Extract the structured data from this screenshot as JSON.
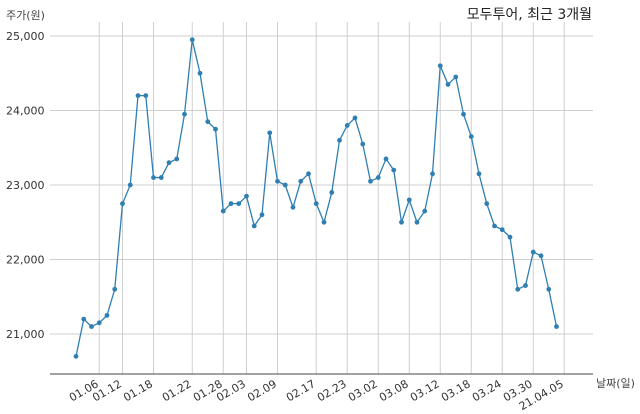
{
  "chart_data": {
    "type": "line",
    "title": "모두투어, 최근 3개월",
    "ylabel": "주가(원)",
    "xlabel": "날짜(일)",
    "ylim": [
      20500,
      25100
    ],
    "yticks": [
      21000,
      22000,
      23000,
      24000,
      25000
    ],
    "ytick_labels": [
      "21,000",
      "22,000",
      "23,000",
      "24,000",
      "25,000"
    ],
    "xtick_labels": [
      "01.06",
      "01.12",
      "01.18",
      "01.22",
      "01.28",
      "02.03",
      "02.09",
      "02.17",
      "02.23",
      "03.02",
      "03.08",
      "03.12",
      "03.18",
      "03.24",
      "03.30",
      "21.04.05"
    ],
    "xtick_positions": [
      3,
      6,
      10,
      15,
      19,
      22,
      26,
      31,
      35,
      39,
      43,
      47,
      51,
      55,
      59,
      63
    ],
    "grid": true,
    "line_color": "#2f7fb3",
    "series": [
      {
        "values": [
          20700,
          21200,
          21100,
          21150,
          21250,
          21600,
          22750,
          23000,
          24200,
          24200,
          23100,
          23100,
          23300,
          23350,
          23950,
          24950,
          24500,
          23850,
          23750,
          22650,
          22750,
          22750,
          22850,
          22450,
          22600,
          23700,
          23050,
          23000,
          22700,
          23050,
          23150,
          22750,
          22500,
          22900,
          23600,
          23800,
          23900,
          23550,
          23050,
          23100,
          23350,
          23200,
          22500,
          22800,
          22500,
          22650,
          23150,
          24600,
          24350,
          24450,
          23950,
          23650,
          23150,
          22750,
          22450,
          22400,
          22300,
          21600,
          21650,
          22100,
          22050,
          21600,
          21100
        ]
      }
    ]
  }
}
